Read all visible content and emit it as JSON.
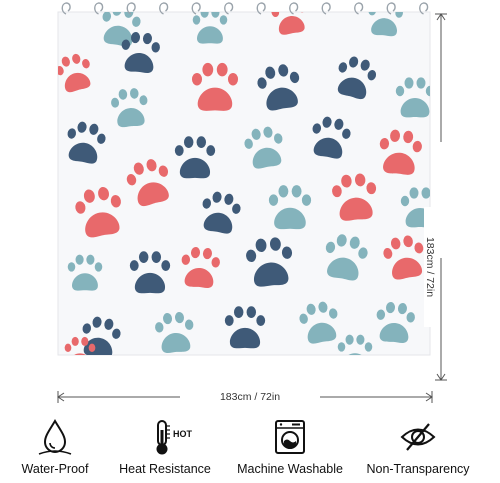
{
  "product": {
    "width_dimension": "183cm / 72in",
    "height_dimension": "183cm / 72in"
  },
  "colors": {
    "navy": "#3f5a78",
    "teal": "#84b3bc",
    "coral": "#e8696b",
    "curtain_background": "#f7f8fa",
    "hook": "#9aa3ab"
  },
  "features": [
    {
      "label": "Water-Proof",
      "icon": "water-drop-icon"
    },
    {
      "label": "Heat Resistance",
      "icon": "thermometer-icon",
      "badge": "HOT"
    },
    {
      "label": "Machine Washable",
      "icon": "washing-machine-icon"
    },
    {
      "label": "Non-Transparency",
      "icon": "eye-off-icon"
    }
  ]
}
